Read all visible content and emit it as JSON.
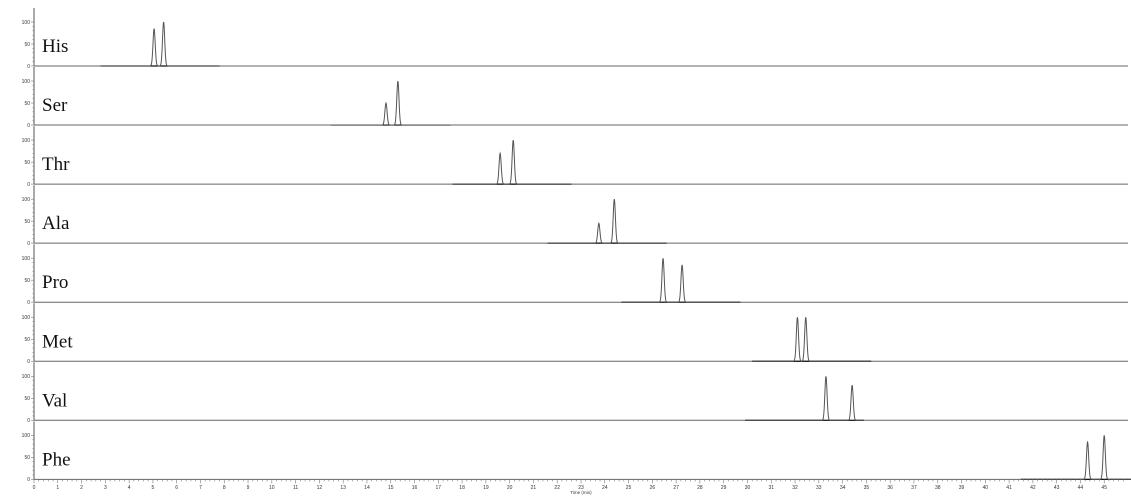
{
  "chart_data": {
    "type": "line",
    "title": "",
    "xlabel": "Time (min)",
    "ylabel": "",
    "xlim": [
      0,
      46
    ],
    "ylim": [
      0,
      100
    ],
    "x_ticks": [
      0,
      1,
      2,
      3,
      4,
      5,
      6,
      7,
      8,
      9,
      10,
      11,
      12,
      13,
      14,
      15,
      16,
      17,
      18,
      19,
      20,
      21,
      22,
      23,
      24,
      25,
      26,
      27,
      28,
      29,
      30,
      31,
      32,
      33,
      34,
      35,
      36,
      37,
      38,
      39,
      40,
      41,
      42,
      43,
      44,
      45
    ],
    "y_ticks": [
      0,
      50,
      100
    ],
    "peak_width_min": 0.12,
    "series": [
      {
        "name": "His",
        "window": [
          2.8,
          7.8
        ],
        "peaks": [
          {
            "rt": 5.05,
            "height": 85
          },
          {
            "rt": 5.45,
            "height": 100
          }
        ]
      },
      {
        "name": "Ser",
        "window": [
          12.5,
          17.5
        ],
        "peaks": [
          {
            "rt": 14.8,
            "height": 50
          },
          {
            "rt": 15.3,
            "height": 100
          }
        ]
      },
      {
        "name": "Thr",
        "window": [
          17.6,
          22.6
        ],
        "peaks": [
          {
            "rt": 19.6,
            "height": 70
          },
          {
            "rt": 20.15,
            "height": 100
          }
        ]
      },
      {
        "name": "Ala",
        "window": [
          21.6,
          26.6
        ],
        "peaks": [
          {
            "rt": 23.75,
            "height": 45
          },
          {
            "rt": 24.4,
            "height": 100
          }
        ]
      },
      {
        "name": "Pro",
        "window": [
          24.7,
          29.7
        ],
        "peaks": [
          {
            "rt": 26.45,
            "height": 100
          },
          {
            "rt": 27.25,
            "height": 85
          }
        ]
      },
      {
        "name": "Met",
        "window": [
          30.2,
          35.2
        ],
        "peaks": [
          {
            "rt": 32.1,
            "height": 100
          },
          {
            "rt": 32.45,
            "height": 100
          }
        ]
      },
      {
        "name": "Val",
        "window": [
          29.9,
          34.9
        ],
        "peaks": [
          {
            "rt": 33.3,
            "height": 100
          },
          {
            "rt": 34.4,
            "height": 80
          }
        ]
      },
      {
        "name": "Phe",
        "window": [
          41.5,
          46.2
        ],
        "peaks": [
          {
            "rt": 44.3,
            "height": 85
          },
          {
            "rt": 45.0,
            "height": 100
          }
        ]
      }
    ]
  }
}
